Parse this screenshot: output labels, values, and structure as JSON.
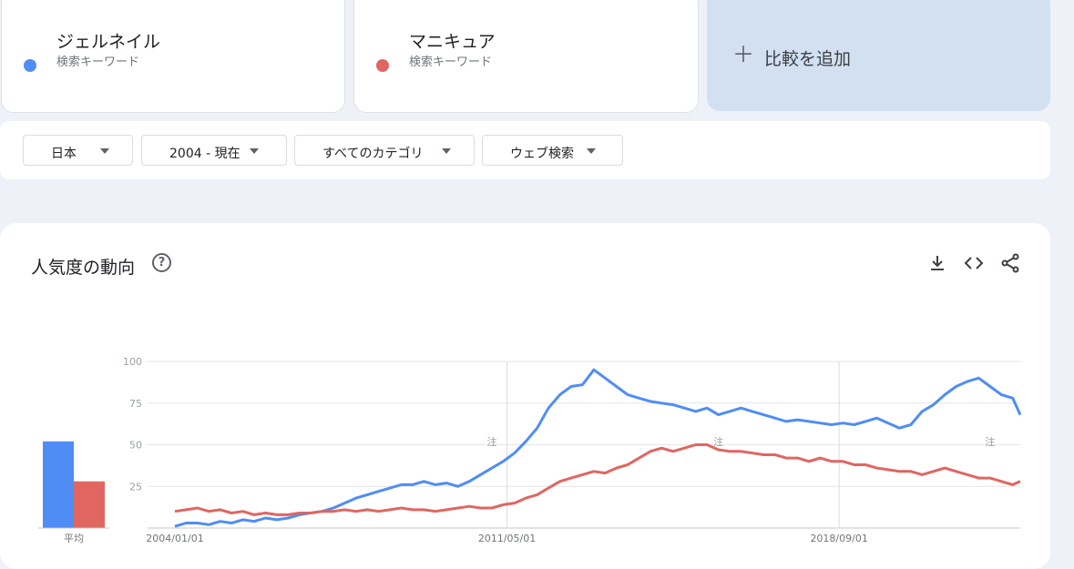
{
  "terms": [
    {
      "name": "ジェルネイル",
      "subtitle": "検索キーワード",
      "color": "#4f8df5"
    },
    {
      "name": "マニキュア",
      "subtitle": "検索キーワード",
      "color": "#e06661"
    }
  ],
  "add_compare": {
    "label": "比較を追加",
    "icon": "plus-icon"
  },
  "filters": {
    "region": "日本",
    "period": "2004 - 現在",
    "category": "すべてのカテゴリ",
    "search_type": "ウェブ検索"
  },
  "card": {
    "title": "人気度の動向",
    "icons": [
      "help-icon",
      "download-icon",
      "embed-code-icon",
      "share-icon"
    ]
  },
  "chart_data": {
    "type": "line",
    "title": "",
    "xlabel": "",
    "ylabel": "",
    "ylim": [
      0,
      100
    ],
    "y_ticks": [
      "100",
      "75",
      "50",
      "25"
    ],
    "x_tick_labels": [
      "2004/01/01",
      "2011/05/01",
      "2018/09/01"
    ],
    "x_range": [
      "2004/01",
      "2022/09"
    ],
    "note_marker": "注",
    "note_markers_at": [
      "2011/01",
      "2016/01",
      "2022/01"
    ],
    "average_label": "平均",
    "averages": {
      "ジェルネイル": 52,
      "マニキュア": 28
    },
    "series_colors": [
      "#4f8df5",
      "#e06661"
    ],
    "x_dates": [
      "2004/01",
      "2004/04",
      "2004/07",
      "2004/10",
      "2005/01",
      "2005/04",
      "2005/07",
      "2005/10",
      "2006/01",
      "2006/04",
      "2006/07",
      "2006/10",
      "2007/01",
      "2007/04",
      "2007/07",
      "2007/10",
      "2008/01",
      "2008/04",
      "2008/07",
      "2008/10",
      "2009/01",
      "2009/04",
      "2009/07",
      "2009/10",
      "2010/01",
      "2010/04",
      "2010/07",
      "2010/10",
      "2011/01",
      "2011/04",
      "2011/07",
      "2011/10",
      "2012/01",
      "2012/04",
      "2012/07",
      "2012/10",
      "2013/01",
      "2013/04",
      "2013/07",
      "2013/10",
      "2014/01",
      "2014/04",
      "2014/07",
      "2014/10",
      "2015/01",
      "2015/04",
      "2015/07",
      "2015/10",
      "2016/01",
      "2016/04",
      "2016/07",
      "2016/10",
      "2017/01",
      "2017/04",
      "2017/07",
      "2017/10",
      "2018/01",
      "2018/04",
      "2018/07",
      "2018/10",
      "2019/01",
      "2019/04",
      "2019/07",
      "2019/10",
      "2020/01",
      "2020/04",
      "2020/07",
      "2020/10",
      "2021/01",
      "2021/04",
      "2021/07",
      "2021/10",
      "2022/01",
      "2022/04",
      "2022/07",
      "2022/09"
    ],
    "series": [
      {
        "name": "ジェルネイル",
        "values": [
          1,
          3,
          3,
          2,
          4,
          3,
          5,
          4,
          6,
          5,
          6,
          8,
          9,
          10,
          12,
          15,
          18,
          20,
          22,
          24,
          26,
          26,
          28,
          26,
          27,
          25,
          28,
          32,
          36,
          40,
          45,
          52,
          60,
          72,
          80,
          85,
          86,
          95,
          90,
          85,
          80,
          78,
          76,
          75,
          74,
          72,
          70,
          72,
          68,
          70,
          72,
          70,
          68,
          66,
          64,
          65,
          64,
          63,
          62,
          63,
          62,
          64,
          66,
          63,
          60,
          62,
          70,
          74,
          80,
          85,
          88,
          90,
          85,
          80,
          78,
          68
        ]
      },
      {
        "name": "マニキュア",
        "values": [
          10,
          11,
          12,
          10,
          11,
          9,
          10,
          8,
          9,
          8,
          8,
          9,
          9,
          10,
          10,
          11,
          10,
          11,
          10,
          11,
          12,
          11,
          11,
          10,
          11,
          12,
          13,
          12,
          12,
          14,
          15,
          18,
          20,
          24,
          28,
          30,
          32,
          34,
          33,
          36,
          38,
          42,
          46,
          48,
          46,
          48,
          50,
          50,
          47,
          46,
          46,
          45,
          44,
          44,
          42,
          42,
          40,
          42,
          40,
          40,
          38,
          38,
          36,
          35,
          34,
          34,
          32,
          34,
          36,
          34,
          32,
          30,
          30,
          28,
          26,
          28
        ]
      }
    ]
  }
}
